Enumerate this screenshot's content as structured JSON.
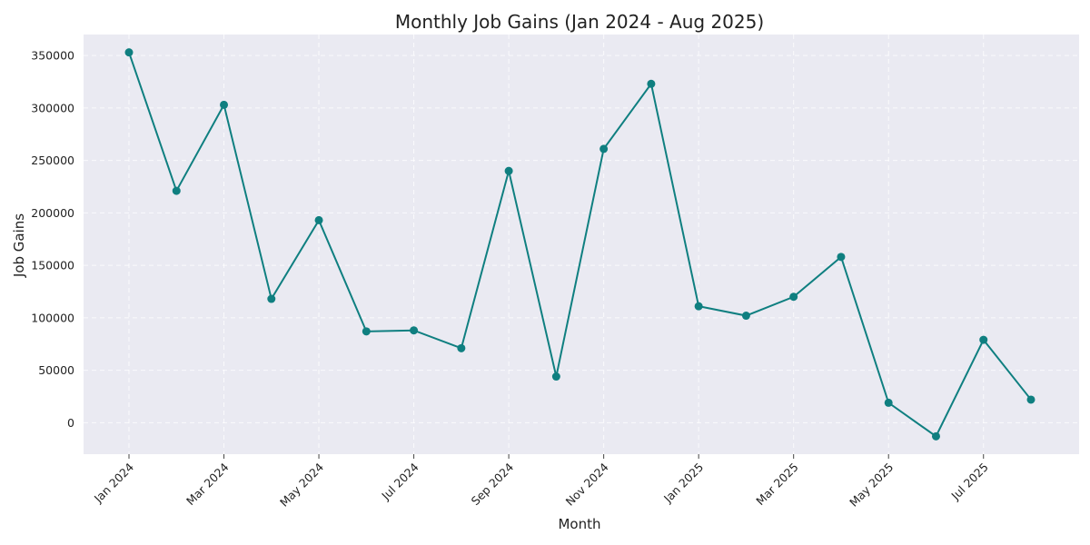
{
  "chart_data": {
    "type": "line",
    "title": "Monthly Job Gains (Jan 2024 - Aug 2025)",
    "xlabel": "Month",
    "ylabel": "Job Gains",
    "x": [
      "2024-01",
      "2024-02",
      "2024-03",
      "2024-04",
      "2024-05",
      "2024-06",
      "2024-07",
      "2024-08",
      "2024-09",
      "2024-10",
      "2024-11",
      "2024-12",
      "2025-01",
      "2025-02",
      "2025-03",
      "2025-04",
      "2025-05",
      "2025-06",
      "2025-07",
      "2025-08"
    ],
    "x_ticks": [
      "Jan 2024",
      "Mar 2024",
      "May 2024",
      "Jul 2024",
      "Sep 2024",
      "Nov 2024",
      "Jan 2025",
      "Mar 2025",
      "May 2025",
      "Jul 2025"
    ],
    "y_ticks": [
      "0",
      "50000",
      "100000",
      "150000",
      "200000",
      "250000",
      "300000",
      "350000"
    ],
    "ylim": [
      -30000,
      370000
    ],
    "grid": true,
    "series": [
      {
        "color": "#0f7f80",
        "values": [
          353000,
          221000,
          303000,
          118000,
          193000,
          87000,
          88000,
          71000,
          240000,
          44000,
          261000,
          323000,
          111000,
          102000,
          120000,
          158000,
          19000,
          -13000,
          79000,
          22000
        ]
      }
    ]
  }
}
